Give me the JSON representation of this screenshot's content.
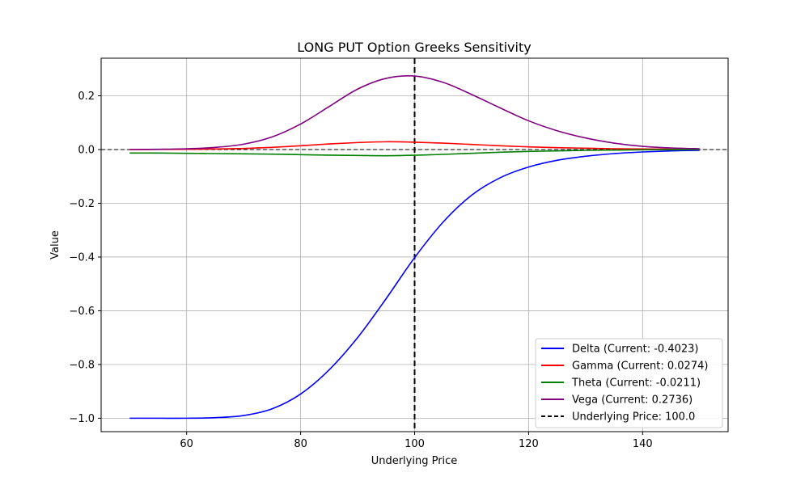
{
  "chart_data": {
    "type": "line",
    "title": "LONG PUT Option Greeks Sensitivity",
    "xlabel": "Underlying Price",
    "ylabel": "Value",
    "xlim": [
      45,
      155
    ],
    "ylim": [
      -1.05,
      0.34
    ],
    "xticks": [
      60,
      80,
      100,
      120,
      140
    ],
    "yticks": [
      -1.0,
      -0.8,
      -0.6,
      -0.4,
      -0.2,
      0.0,
      0.2
    ],
    "grid": true,
    "legend_position": "lower-right",
    "x": [
      50,
      55,
      60,
      65,
      70,
      75,
      80,
      85,
      90,
      95,
      100,
      105,
      110,
      115,
      120,
      125,
      130,
      135,
      140,
      145,
      150
    ],
    "series": [
      {
        "name": "Delta (Current: -0.4023)",
        "color": "#0000ff",
        "values": [
          -1.0,
          -1.0,
          -1.0,
          -0.998,
          -0.99,
          -0.965,
          -0.91,
          -0.82,
          -0.7,
          -0.555,
          -0.4023,
          -0.27,
          -0.17,
          -0.105,
          -0.065,
          -0.04,
          -0.025,
          -0.015,
          -0.009,
          -0.005,
          -0.003
        ]
      },
      {
        "name": "Gamma (Current: 0.0274)",
        "color": "#ff0000",
        "values": [
          0.0,
          0.0005,
          0.001,
          0.002,
          0.004,
          0.008,
          0.014,
          0.021,
          0.026,
          0.029,
          0.0274,
          0.024,
          0.019,
          0.014,
          0.01,
          0.007,
          0.005,
          0.003,
          0.002,
          0.0015,
          0.001
        ]
      },
      {
        "name": "Theta (Current: -0.0211)",
        "color": "#008000",
        "values": [
          -0.013,
          -0.013,
          -0.014,
          -0.015,
          -0.016,
          -0.017,
          -0.019,
          -0.021,
          -0.022,
          -0.023,
          -0.0211,
          -0.018,
          -0.014,
          -0.01,
          -0.007,
          -0.005,
          -0.003,
          -0.002,
          -0.001,
          -0.0005,
          0.0
        ]
      },
      {
        "name": "Vega (Current: 0.2736)",
        "color": "#800080",
        "values": [
          0.0,
          0.001,
          0.003,
          0.008,
          0.02,
          0.047,
          0.095,
          0.16,
          0.225,
          0.265,
          0.2736,
          0.25,
          0.205,
          0.155,
          0.107,
          0.07,
          0.043,
          0.024,
          0.012,
          0.006,
          0.003
        ]
      }
    ],
    "reference_lines": [
      {
        "name": "Underlying Price: 100.0",
        "orientation": "vertical",
        "value": 100,
        "color": "#000000",
        "dashed": true
      },
      {
        "orientation": "horizontal",
        "value": 0,
        "color": "#000000",
        "dashed": true
      }
    ]
  }
}
